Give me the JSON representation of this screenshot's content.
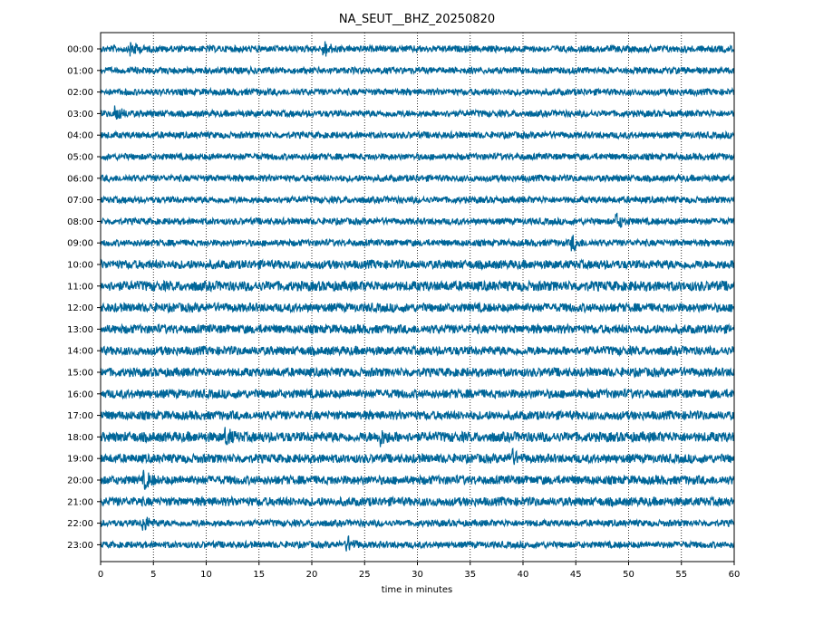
{
  "chart_data": {
    "type": "line",
    "title": "NA_SEUT__BHZ_20250820",
    "xlabel": "time in minutes",
    "ylabel": "",
    "xlim": [
      0,
      60
    ],
    "x_ticks": [
      0,
      5,
      10,
      15,
      20,
      25,
      30,
      35,
      40,
      45,
      50,
      55,
      60
    ],
    "x_tick_labels": [
      "0",
      "5",
      "10",
      "15",
      "20",
      "25",
      "30",
      "35",
      "40",
      "45",
      "50",
      "55",
      "60"
    ],
    "rows": [
      "00:00",
      "01:00",
      "02:00",
      "03:00",
      "04:00",
      "05:00",
      "06:00",
      "07:00",
      "08:00",
      "09:00",
      "10:00",
      "11:00",
      "12:00",
      "13:00",
      "14:00",
      "15:00",
      "16:00",
      "17:00",
      "18:00",
      "19:00",
      "20:00",
      "21:00",
      "22:00",
      "23:00"
    ],
    "grid": "vertical dotted lines at x ticks",
    "trace_color": "#006699",
    "events": [
      {
        "row": "00:00",
        "minute": 3.0
      },
      {
        "row": "00:00",
        "minute": 21.3
      },
      {
        "row": "03:00",
        "minute": 1.6
      },
      {
        "row": "08:00",
        "minute": 49.0
      },
      {
        "row": "09:00",
        "minute": 44.8
      },
      {
        "row": "18:00",
        "minute": 26.5
      },
      {
        "row": "18:00",
        "minute": 12.0
      },
      {
        "row": "19:00",
        "minute": 39.0
      },
      {
        "row": "20:00",
        "minute": 4.3
      },
      {
        "row": "22:00",
        "minute": 4.2
      },
      {
        "row": "23:00",
        "minute": 23.5
      }
    ]
  }
}
